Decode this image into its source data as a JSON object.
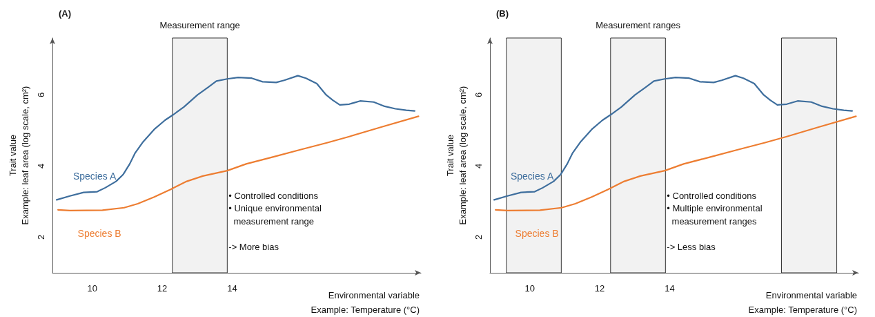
{
  "chart_data": [
    {
      "type": "line",
      "title": "(A)",
      "xlabel": "Environmental variable\nExample: Temperature (°C)",
      "ylabel": "Trait value\nExample: leaf area (log scale, cm²)",
      "xlim": [
        8.86,
        19.4
      ],
      "xticks": [
        10,
        12,
        14
      ],
      "ylim": [
        1,
        7.6
      ],
      "yticks": [
        2,
        4,
        6
      ],
      "grid": false,
      "legend": false,
      "marker": "none",
      "line_style": "solid",
      "series": [
        {
          "name": "Species A",
          "color": "#3e6e9d",
          "x": [
            8.98,
            9.36,
            9.75,
            10.14,
            10.37,
            10.68,
            10.88,
            11.07,
            11.22,
            11.46,
            11.77,
            12.08,
            12.31,
            12.62,
            13.01,
            13.32,
            13.55,
            13.86,
            14.17,
            14.56,
            14.87,
            15.26,
            15.49,
            15.88,
            16.11,
            16.42,
            16.69,
            16.88,
            17.08,
            17.35,
            17.66,
            18.05,
            18.36,
            18.67,
            18.98,
            19.22
          ],
          "values": [
            3.05,
            3.16,
            3.26,
            3.28,
            3.39,
            3.57,
            3.76,
            4.06,
            4.36,
            4.69,
            5.03,
            5.29,
            5.44,
            5.66,
            6.0,
            6.22,
            6.39,
            6.45,
            6.49,
            6.47,
            6.37,
            6.35,
            6.41,
            6.54,
            6.47,
            6.32,
            6.0,
            5.85,
            5.72,
            5.74,
            5.83,
            5.8,
            5.68,
            5.61,
            5.57,
            5.55
          ]
        },
        {
          "name": "Species B",
          "color": "#ed7d31",
          "x": [
            9.02,
            9.36,
            10.29,
            10.91,
            11.3,
            11.77,
            12.23,
            12.7,
            13.16,
            13.86,
            14.4,
            15.18,
            15.95,
            16.73,
            17.35,
            18.28,
            19.33
          ],
          "values": [
            2.77,
            2.75,
            2.76,
            2.83,
            2.94,
            3.13,
            3.34,
            3.57,
            3.72,
            3.87,
            4.06,
            4.26,
            4.46,
            4.66,
            4.83,
            5.1,
            5.4
          ]
        }
      ],
      "bands": [
        {
          "axis": "x",
          "from": 12.29,
          "to": 13.86,
          "label": "Measurement range",
          "color": "#f2f2f2"
        }
      ],
      "annotations": [
        "• Controlled conditions",
        "• Unique environmental\n  measurement range",
        "-> More bias"
      ]
    },
    {
      "type": "line",
      "title": "(B)",
      "xlabel": "Environmental variable\nExample: Temperature (°C)",
      "ylabel": "Trait value\nExample: leaf area (log scale, cm²)",
      "xlim": [
        8.86,
        19.4
      ],
      "xticks": [
        10,
        12,
        14
      ],
      "ylim": [
        1,
        7.6
      ],
      "yticks": [
        2,
        4,
        6
      ],
      "grid": false,
      "legend": false,
      "marker": "none",
      "line_style": "solid",
      "series": [
        {
          "name": "Species A",
          "color": "#3e6e9d",
          "x": [
            8.98,
            9.36,
            9.75,
            10.14,
            10.37,
            10.68,
            10.88,
            11.07,
            11.22,
            11.46,
            11.77,
            12.08,
            12.31,
            12.62,
            13.01,
            13.32,
            13.55,
            13.86,
            14.17,
            14.56,
            14.87,
            15.26,
            15.49,
            15.88,
            16.11,
            16.42,
            16.69,
            16.88,
            17.08,
            17.35,
            17.66,
            18.05,
            18.36,
            18.67,
            18.98,
            19.22
          ],
          "values": [
            3.05,
            3.16,
            3.26,
            3.28,
            3.39,
            3.57,
            3.76,
            4.06,
            4.36,
            4.69,
            5.03,
            5.29,
            5.44,
            5.66,
            6.0,
            6.22,
            6.39,
            6.45,
            6.49,
            6.47,
            6.37,
            6.35,
            6.41,
            6.54,
            6.47,
            6.32,
            6.0,
            5.85,
            5.72,
            5.74,
            5.83,
            5.8,
            5.68,
            5.61,
            5.57,
            5.55
          ]
        },
        {
          "name": "Species B",
          "color": "#ed7d31",
          "x": [
            9.02,
            9.36,
            10.29,
            10.91,
            11.3,
            11.77,
            12.23,
            12.7,
            13.16,
            13.86,
            14.4,
            15.18,
            15.95,
            16.73,
            17.35,
            18.28,
            19.33
          ],
          "values": [
            2.77,
            2.75,
            2.76,
            2.83,
            2.94,
            3.13,
            3.34,
            3.57,
            3.72,
            3.87,
            4.06,
            4.26,
            4.46,
            4.66,
            4.83,
            5.1,
            5.4
          ]
        }
      ],
      "bands": [
        {
          "axis": "x",
          "from": 9.33,
          "to": 10.9,
          "label": null,
          "color": "#f2f2f2"
        },
        {
          "axis": "x",
          "from": 12.31,
          "to": 13.88,
          "label": "Measurement ranges",
          "color": "#f2f2f2"
        },
        {
          "axis": "x",
          "from": 17.2,
          "to": 18.78,
          "label": null,
          "color": "#f2f2f2"
        }
      ],
      "annotations": [
        "• Controlled conditions",
        "• Multiple environmental\n  measurement ranges",
        "-> Less bias"
      ]
    }
  ]
}
